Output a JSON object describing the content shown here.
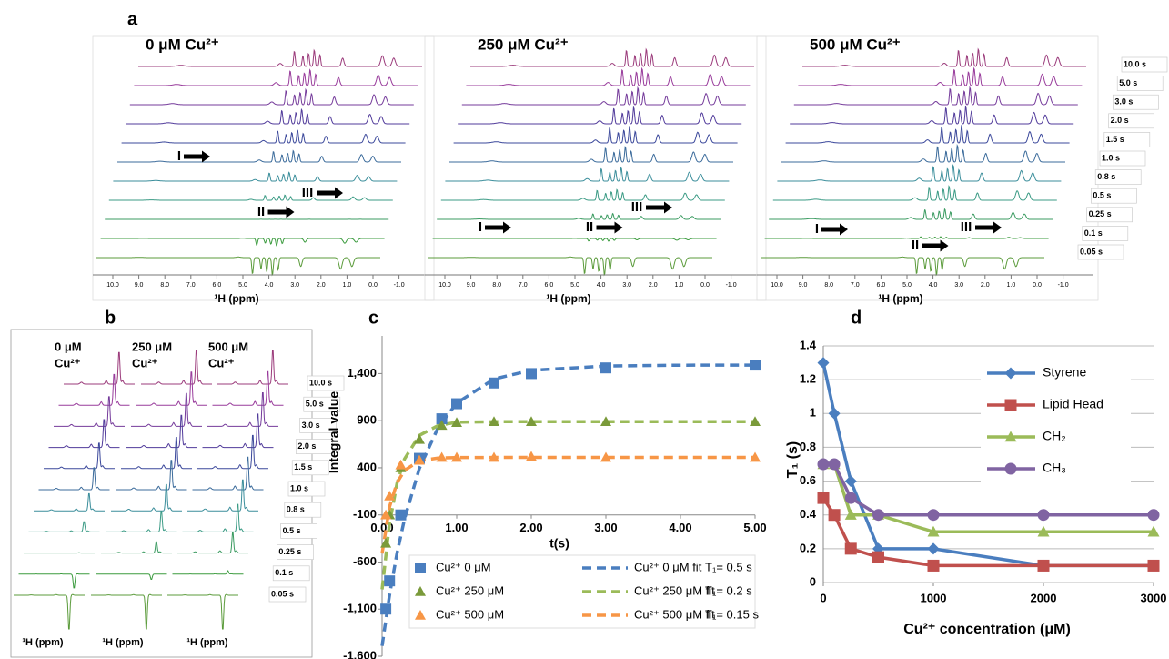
{
  "panels": {
    "a": {
      "label": "a",
      "stacks": [
        {
          "title": "0 μM Cu²⁺",
          "arrows": [
            "I",
            "II",
            "III"
          ]
        },
        {
          "title": "250 μM Cu²⁺",
          "arrows": [
            "I",
            "II",
            "III"
          ]
        },
        {
          "title": "500 μM Cu²⁺",
          "arrows": [
            "I",
            "II",
            "III"
          ]
        }
      ],
      "ppm_ticks": [
        "10.0",
        "9.0",
        "8.0",
        "7.0",
        "6.0",
        "5.0",
        "4.0",
        "3.0",
        "2.0",
        "1.0",
        "0.0",
        "-1.0"
      ],
      "axis_label": "¹H (ppm)",
      "times": [
        "10.0 s",
        "5.0 s",
        "3.0 s",
        "2.0 s",
        "1.5 s",
        "1.0 s",
        "0.8 s",
        "0.5 s",
        "0.25 s",
        "0.1 s",
        "0.05 s"
      ]
    },
    "b": {
      "label": "b",
      "columns": [
        {
          "lines": [
            "0 μM",
            "Cu²⁺"
          ],
          "axis_label": "¹H (ppm)"
        },
        {
          "lines": [
            "250 μM",
            "Cu²⁺"
          ],
          "axis_label": "¹H (ppm)"
        },
        {
          "lines": [
            "500 μM",
            "Cu²⁺"
          ],
          "axis_label": "¹H (ppm)"
        }
      ],
      "times": [
        "10.0 s",
        "5.0 s",
        "3.0 s",
        "2.0 s",
        "1.5 s",
        "1.0 s",
        "0.8 s",
        "0.5 s",
        "0.25 s",
        "0.1 s",
        "0.05 s"
      ]
    }
  },
  "chart_data": [
    {
      "type": "scatter",
      "panel_label": "c",
      "xlabel": "t(s)",
      "ylabel": "Integral value",
      "xlim": [
        0,
        5
      ],
      "xticks": [
        {
          "value": 0,
          "label": "0.00"
        },
        {
          "value": 1,
          "label": "1.00"
        },
        {
          "value": 2,
          "label": "2.00"
        },
        {
          "value": 3,
          "label": "3.00"
        },
        {
          "value": 4,
          "label": "4.00"
        },
        {
          "value": 5,
          "label": "5.00"
        }
      ],
      "ylim": [
        -1600,
        1800
      ],
      "yticks": [
        {
          "value": -1600,
          "label": "-1,600"
        },
        {
          "value": -1100,
          "label": "-1,100"
        },
        -600,
        -100,
        400,
        900,
        {
          "value": 1400,
          "label": "1,400"
        }
      ],
      "xaxis_crossing": -100,
      "series": [
        {
          "name": "Cu²⁺ 0     μM",
          "color": "#4a7ebf",
          "marker": "square",
          "x": [
            0.05,
            0.1,
            0.25,
            0.5,
            0.8,
            1.0,
            1.5,
            2.0,
            3.0,
            5.0
          ],
          "values": [
            -1100,
            -800,
            -100,
            500,
            920,
            1080,
            1300,
            1400,
            1460,
            1490
          ]
        },
        {
          "name": "Cu²⁺ 250 μM",
          "color": "#7a9a3a",
          "marker": "triangle",
          "x": [
            0.05,
            0.1,
            0.25,
            0.5,
            0.8,
            1.0,
            1.5,
            2.0,
            3.0,
            5.0
          ],
          "values": [
            -400,
            -100,
            400,
            700,
            850,
            880,
            890,
            890,
            890,
            890
          ]
        },
        {
          "name": "Cu²⁺ 500 μM",
          "color": "#f79646",
          "marker": "triangle",
          "x": [
            0.05,
            0.1,
            0.25,
            0.5,
            0.8,
            1.0,
            1.5,
            2.0,
            3.0,
            5.0
          ],
          "values": [
            -100,
            100,
            430,
            480,
            510,
            510,
            510,
            520,
            510,
            510
          ]
        },
        {
          "name": "Cu²⁺ 0     μM fit",
          "color": "#4a7ebf",
          "line": "dashed",
          "x": [
            0,
            0.1,
            0.2,
            0.3,
            0.5,
            0.75,
            1,
            1.5,
            2,
            3,
            4,
            5
          ],
          "values": [
            -1490,
            -950,
            -507,
            -145,
            394,
            825,
            1087,
            1342,
            1435,
            1480,
            1489,
            1490
          ]
        },
        {
          "name": "Cu²⁺ 250 μM fit",
          "color": "#9bbb59",
          "line": "dashed",
          "x": [
            0,
            0.1,
            0.2,
            0.3,
            0.5,
            0.75,
            1,
            1.5,
            2,
            3,
            4,
            5
          ],
          "values": [
            -890,
            -190,
            235,
            493,
            744,
            848,
            884,
            889,
            890,
            890,
            890,
            890
          ]
        },
        {
          "name": "Cu²⁺ 500 μM fit",
          "color": "#f79646",
          "line": "dashed",
          "x": [
            0,
            0.1,
            0.2,
            0.3,
            0.5,
            0.75,
            1,
            1.5,
            2,
            3,
            4,
            5
          ],
          "values": [
            -510,
            -14,
            241,
            372,
            474,
            503,
            509,
            510,
            510,
            510,
            510,
            510
          ]
        }
      ],
      "annotations": [
        "T₁= 0.5 s",
        "T₁= 0.2 s",
        "T₁= 0.15 s"
      ]
    },
    {
      "type": "line",
      "panel_label": "d",
      "xlabel": "Cu²⁺  concentration (μM)",
      "ylabel": "T₁ (s)",
      "x": [
        0,
        100,
        250,
        500,
        1000,
        2000,
        3000
      ],
      "xlim": [
        0,
        3000
      ],
      "xticks": [
        0,
        1000,
        2000,
        3000
      ],
      "ylim": [
        0,
        1.4
      ],
      "yticks": [
        0,
        0.2,
        0.4,
        0.6,
        0.8,
        1,
        1.2,
        1.4
      ],
      "grid": true,
      "legend": "upper right",
      "series": [
        {
          "name": "Styrene",
          "color": "#4a7ebf",
          "marker": "diamond",
          "values": [
            1.3,
            1.0,
            0.6,
            0.2,
            0.2,
            0.1,
            0.1
          ]
        },
        {
          "name": "Lipid Head",
          "color": "#c0504d",
          "marker": "square",
          "values": [
            0.5,
            0.4,
            0.2,
            0.15,
            0.1,
            0.1,
            0.1
          ]
        },
        {
          "name": "CH₂",
          "color": "#9bbb59",
          "marker": "triangle",
          "values": [
            0.7,
            0.7,
            0.4,
            0.4,
            0.3,
            0.3,
            0.3
          ]
        },
        {
          "name": "CH₃",
          "color": "#8064a2",
          "marker": "circle",
          "values": [
            0.7,
            0.7,
            0.5,
            0.4,
            0.4,
            0.4,
            0.4
          ]
        }
      ]
    }
  ]
}
